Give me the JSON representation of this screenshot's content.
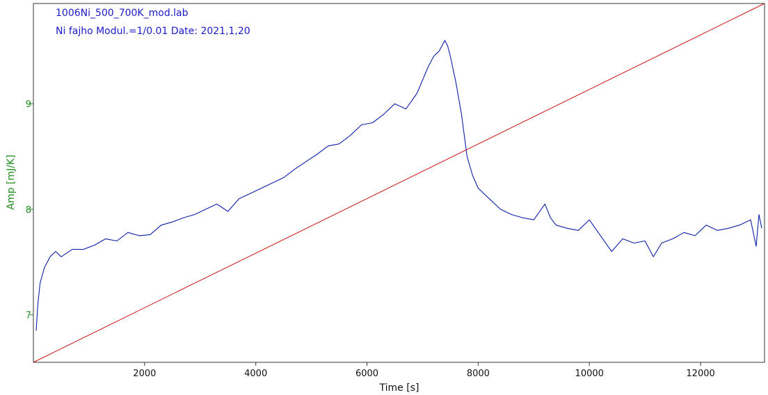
{
  "header": {
    "title_line1": "1006Ni_500_700K_mod.lab",
    "title_line2": "Ni fajho Modul.=1/0.01 Date: 2021,1,20"
  },
  "colors": {
    "amp_series": "#0b1fa8",
    "temperature_series": "#cc1111",
    "y_axis": "#1c8c1c",
    "title_text": "#1a1ac8"
  },
  "chart_data": {
    "type": "line",
    "xlabel": "Time [s]",
    "ylabel": "Amp [mJ/K]",
    "xlim": [
      0,
      13150
    ],
    "ylim": [
      6.55,
      9.95
    ],
    "xticks": [
      2000,
      4000,
      6000,
      8000,
      10000,
      12000
    ],
    "yticks": [
      7,
      8,
      9
    ],
    "x_tick_labels": [
      "2000",
      "4000",
      "6000",
      "8000",
      "10000",
      "12000"
    ],
    "y_tick_labels": [
      "7",
      "8",
      "9"
    ],
    "grid": false,
    "legend": "none",
    "series": [
      {
        "color": "#0b1fa8",
        "x": [
          50,
          80,
          120,
          200,
          300,
          400,
          500,
          700,
          900,
          1100,
          1300,
          1500,
          1700,
          1900,
          2100,
          2300,
          2500,
          2700,
          2900,
          3100,
          3300,
          3500,
          3700,
          3900,
          4100,
          4300,
          4500,
          4700,
          4900,
          5100,
          5300,
          5500,
          5700,
          5900,
          6100,
          6300,
          6500,
          6700,
          6900,
          7100,
          7200,
          7300,
          7400,
          7450,
          7500,
          7600,
          7700,
          7800,
          7900,
          8000,
          8200,
          8400,
          8600,
          8800,
          9000,
          9200,
          9300,
          9400,
          9600,
          9800,
          10000,
          10200,
          10400,
          10600,
          10800,
          11000,
          11150,
          11300,
          11500,
          11700,
          11900,
          12100,
          12300,
          12500,
          12700,
          12900,
          13000,
          13050,
          13100
        ],
        "values": [
          6.85,
          7.1,
          7.3,
          7.45,
          7.55,
          7.6,
          7.55,
          7.62,
          7.62,
          7.66,
          7.72,
          7.7,
          7.78,
          7.75,
          7.76,
          7.85,
          7.88,
          7.92,
          7.95,
          8.0,
          8.05,
          7.98,
          8.1,
          8.15,
          8.2,
          8.25,
          8.3,
          8.38,
          8.45,
          8.52,
          8.6,
          8.62,
          8.7,
          8.8,
          8.82,
          8.9,
          9.0,
          8.95,
          9.1,
          9.35,
          9.45,
          9.5,
          9.6,
          9.55,
          9.45,
          9.2,
          8.9,
          8.5,
          8.32,
          8.2,
          8.1,
          8.0,
          7.95,
          7.92,
          7.9,
          8.05,
          7.92,
          7.85,
          7.82,
          7.8,
          7.9,
          7.75,
          7.6,
          7.72,
          7.68,
          7.7,
          7.55,
          7.68,
          7.72,
          7.78,
          7.75,
          7.85,
          7.8,
          7.82,
          7.85,
          7.9,
          7.65,
          7.95,
          7.82
        ]
      },
      {
        "color": "#cc1111",
        "x": [
          0,
          13150
        ],
        "values": [
          6.55,
          9.95
        ]
      }
    ]
  }
}
